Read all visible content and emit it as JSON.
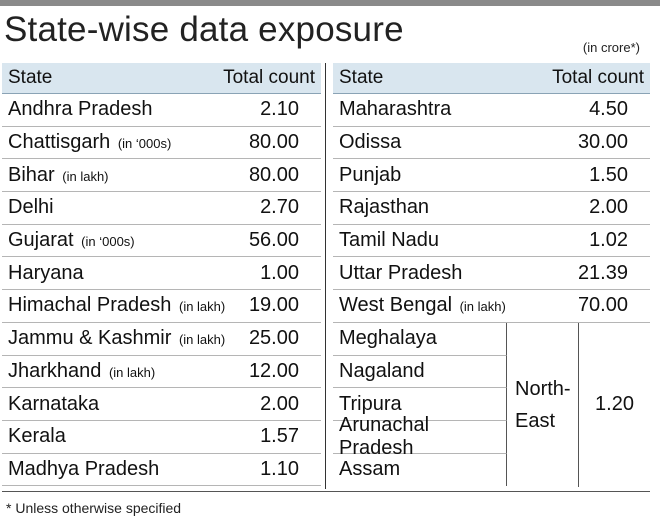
{
  "title": "State-wise data exposure",
  "unit_note": "(in crore*)",
  "footnote": "* Unless otherwise specified",
  "headers": {
    "state": "State",
    "count": "Total count"
  },
  "left_rows": [
    {
      "state": "Andhra Pradesh",
      "qualifier": "",
      "count": "2.10"
    },
    {
      "state": "Chattisgarh",
      "qualifier": "(in ‘000s)",
      "count": "80.00"
    },
    {
      "state": "Bihar",
      "qualifier": "(in lakh)",
      "count": "80.00"
    },
    {
      "state": "Delhi",
      "qualifier": "",
      "count": "2.70"
    },
    {
      "state": "Gujarat",
      "qualifier": "(in ‘000s)",
      "count": "56.00"
    },
    {
      "state": "Haryana",
      "qualifier": "",
      "count": "1.00"
    },
    {
      "state": "Himachal Pradesh",
      "qualifier": "(in lakh)",
      "count": "19.00"
    },
    {
      "state": "Jammu & Kashmir",
      "qualifier": "(in lakh)",
      "count": "25.00"
    },
    {
      "state": "Jharkhand",
      "qualifier": "(in lakh)",
      "count": "12.00"
    },
    {
      "state": "Karnataka",
      "qualifier": "",
      "count": "2.00"
    },
    {
      "state": "Kerala",
      "qualifier": "",
      "count": "1.57"
    },
    {
      "state": "Madhya Pradesh",
      "qualifier": "",
      "count": "1.10"
    }
  ],
  "right_rows": [
    {
      "state": "Maharashtra",
      "qualifier": "",
      "count": "4.50"
    },
    {
      "state": "Odissa",
      "qualifier": "",
      "count": "30.00"
    },
    {
      "state": "Punjab",
      "qualifier": "",
      "count": "1.50"
    },
    {
      "state": "Rajasthan",
      "qualifier": "",
      "count": "2.00"
    },
    {
      "state": "Tamil Nadu",
      "qualifier": "",
      "count": "1.02"
    },
    {
      "state": "Uttar Pradesh",
      "qualifier": "",
      "count": "21.39"
    },
    {
      "state": "West Bengal",
      "qualifier": "(in lakh)",
      "count": "70.00"
    }
  ],
  "north_east": {
    "states": [
      "Meghalaya",
      "Nagaland",
      "Tripura",
      "Arunachal Pradesh",
      "Assam"
    ],
    "region_line1": "North-",
    "region_line2": "East",
    "count": "1.20"
  }
}
